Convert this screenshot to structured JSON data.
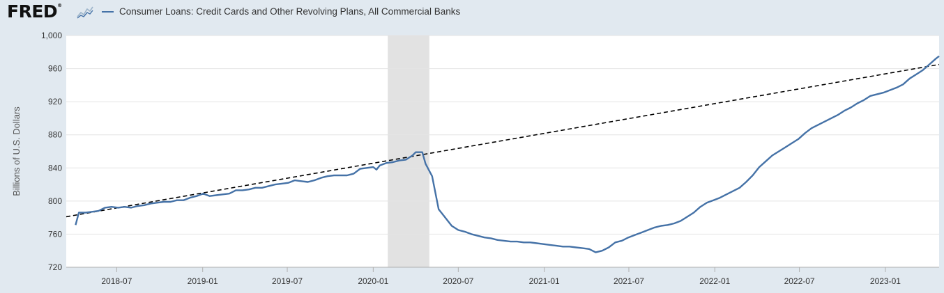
{
  "brand": {
    "logo_text": "FRED",
    "logo_mark": "®",
    "chart_icon": "line-chart-icon"
  },
  "chart_data": {
    "type": "line",
    "title": "",
    "legend": {
      "placement": "top-left"
    },
    "series": [
      {
        "name": "Consumer Loans: Credit Cards and Other Revolving Plans, All Commercial Banks",
        "color": "#4572a7",
        "points": [
          [
            "2018-04-04",
            771
          ],
          [
            "2018-04-11",
            786
          ],
          [
            "2018-04-25",
            786
          ],
          [
            "2018-05-09",
            787
          ],
          [
            "2018-05-23",
            788
          ],
          [
            "2018-06-06",
            792
          ],
          [
            "2018-06-20",
            793
          ],
          [
            "2018-07-04",
            792
          ],
          [
            "2018-07-18",
            793
          ],
          [
            "2018-08-01",
            792
          ],
          [
            "2018-08-15",
            794
          ],
          [
            "2018-08-29",
            795
          ],
          [
            "2018-09-12",
            797
          ],
          [
            "2018-09-26",
            798
          ],
          [
            "2018-10-10",
            799
          ],
          [
            "2018-10-24",
            799
          ],
          [
            "2018-11-07",
            801
          ],
          [
            "2018-11-21",
            801
          ],
          [
            "2018-12-05",
            804
          ],
          [
            "2018-12-19",
            806
          ],
          [
            "2019-01-02",
            809
          ],
          [
            "2019-01-16",
            806
          ],
          [
            "2019-01-30",
            807
          ],
          [
            "2019-02-13",
            808
          ],
          [
            "2019-02-27",
            809
          ],
          [
            "2019-03-13",
            813
          ],
          [
            "2019-03-27",
            813
          ],
          [
            "2019-04-10",
            814
          ],
          [
            "2019-04-24",
            816
          ],
          [
            "2019-05-08",
            816
          ],
          [
            "2019-05-22",
            818
          ],
          [
            "2019-06-05",
            820
          ],
          [
            "2019-06-19",
            821
          ],
          [
            "2019-07-03",
            822
          ],
          [
            "2019-07-17",
            825
          ],
          [
            "2019-07-31",
            824
          ],
          [
            "2019-08-14",
            823
          ],
          [
            "2019-08-28",
            825
          ],
          [
            "2019-09-11",
            828
          ],
          [
            "2019-09-25",
            830
          ],
          [
            "2019-10-09",
            831
          ],
          [
            "2019-10-23",
            831
          ],
          [
            "2019-11-06",
            831
          ],
          [
            "2019-11-20",
            833
          ],
          [
            "2019-12-04",
            839
          ],
          [
            "2019-12-18",
            840
          ],
          [
            "2020-01-01",
            841
          ],
          [
            "2020-01-08",
            838
          ],
          [
            "2020-01-15",
            843
          ],
          [
            "2020-01-29",
            846
          ],
          [
            "2020-02-12",
            847
          ],
          [
            "2020-02-26",
            849
          ],
          [
            "2020-03-11",
            850
          ],
          [
            "2020-03-25",
            855
          ],
          [
            "2020-04-01",
            859
          ],
          [
            "2020-04-15",
            859
          ],
          [
            "2020-04-22",
            845
          ],
          [
            "2020-05-06",
            830
          ],
          [
            "2020-05-20",
            790
          ],
          [
            "2020-06-03",
            780
          ],
          [
            "2020-06-17",
            770
          ],
          [
            "2020-07-01",
            765
          ],
          [
            "2020-07-15",
            763
          ],
          [
            "2020-07-29",
            760
          ],
          [
            "2020-08-12",
            758
          ],
          [
            "2020-08-26",
            756
          ],
          [
            "2020-09-09",
            755
          ],
          [
            "2020-09-23",
            753
          ],
          [
            "2020-10-07",
            752
          ],
          [
            "2020-10-21",
            751
          ],
          [
            "2020-11-04",
            751
          ],
          [
            "2020-11-18",
            750
          ],
          [
            "2020-12-02",
            750
          ],
          [
            "2020-12-16",
            749
          ],
          [
            "2020-12-30",
            748
          ],
          [
            "2021-01-13",
            747
          ],
          [
            "2021-01-27",
            746
          ],
          [
            "2021-02-10",
            745
          ],
          [
            "2021-02-24",
            745
          ],
          [
            "2021-03-10",
            744
          ],
          [
            "2021-03-24",
            743
          ],
          [
            "2021-04-07",
            742
          ],
          [
            "2021-04-21",
            738
          ],
          [
            "2021-05-05",
            740
          ],
          [
            "2021-05-19",
            744
          ],
          [
            "2021-06-02",
            750
          ],
          [
            "2021-06-16",
            752
          ],
          [
            "2021-06-30",
            756
          ],
          [
            "2021-07-14",
            759
          ],
          [
            "2021-07-28",
            762
          ],
          [
            "2021-08-11",
            765
          ],
          [
            "2021-08-25",
            768
          ],
          [
            "2021-09-08",
            770
          ],
          [
            "2021-09-22",
            771
          ],
          [
            "2021-10-06",
            773
          ],
          [
            "2021-10-20",
            776
          ],
          [
            "2021-11-03",
            781
          ],
          [
            "2021-11-17",
            786
          ],
          [
            "2021-12-01",
            793
          ],
          [
            "2021-12-15",
            798
          ],
          [
            "2021-12-29",
            801
          ],
          [
            "2022-01-12",
            804
          ],
          [
            "2022-01-26",
            808
          ],
          [
            "2022-02-09",
            812
          ],
          [
            "2022-02-23",
            816
          ],
          [
            "2022-03-09",
            823
          ],
          [
            "2022-03-23",
            831
          ],
          [
            "2022-04-06",
            841
          ],
          [
            "2022-04-20",
            848
          ],
          [
            "2022-05-04",
            855
          ],
          [
            "2022-05-18",
            860
          ],
          [
            "2022-06-01",
            865
          ],
          [
            "2022-06-15",
            870
          ],
          [
            "2022-06-29",
            875
          ],
          [
            "2022-07-13",
            882
          ],
          [
            "2022-07-27",
            888
          ],
          [
            "2022-08-10",
            892
          ],
          [
            "2022-08-24",
            896
          ],
          [
            "2022-09-07",
            900
          ],
          [
            "2022-09-21",
            904
          ],
          [
            "2022-10-05",
            909
          ],
          [
            "2022-10-19",
            913
          ],
          [
            "2022-11-02",
            918
          ],
          [
            "2022-11-16",
            922
          ],
          [
            "2022-11-30",
            927
          ],
          [
            "2022-12-14",
            929
          ],
          [
            "2022-12-28",
            931
          ],
          [
            "2023-01-11",
            934
          ],
          [
            "2023-01-25",
            937
          ],
          [
            "2023-02-08",
            941
          ],
          [
            "2023-02-22",
            948
          ],
          [
            "2023-03-08",
            953
          ],
          [
            "2023-03-22",
            958
          ],
          [
            "2023-04-05",
            965
          ],
          [
            "2023-04-19",
            972
          ],
          [
            "2023-04-26",
            975
          ]
        ]
      }
    ],
    "trendline": {
      "style": "dashed",
      "color": "#000000",
      "points": [
        [
          "2018-03-15",
          781
        ],
        [
          "2023-04-26",
          965
        ]
      ]
    },
    "recession_band": {
      "color": "#e2e2e2",
      "start": "2020-02-01",
      "end": "2020-04-30"
    },
    "x_axis": {
      "range": [
        "2018-03-15",
        "2023-04-26"
      ],
      "ticks": [
        {
          "date": "2018-07-01",
          "label": "2018-07"
        },
        {
          "date": "2019-01-01",
          "label": "2019-01"
        },
        {
          "date": "2019-07-01",
          "label": "2019-07"
        },
        {
          "date": "2020-01-01",
          "label": "2020-01"
        },
        {
          "date": "2020-07-01",
          "label": "2020-07"
        },
        {
          "date": "2021-01-01",
          "label": "2021-01"
        },
        {
          "date": "2021-07-01",
          "label": "2021-07"
        },
        {
          "date": "2022-01-01",
          "label": "2022-01"
        },
        {
          "date": "2022-07-01",
          "label": "2022-07"
        },
        {
          "date": "2023-01-01",
          "label": "2023-01"
        }
      ]
    },
    "y_axis": {
      "label": "Billions of U.S. Dollars",
      "range": [
        720,
        1000
      ],
      "ticks": [
        {
          "value": 720,
          "label": "720"
        },
        {
          "value": 760,
          "label": "760"
        },
        {
          "value": 800,
          "label": "800"
        },
        {
          "value": 840,
          "label": "840"
        },
        {
          "value": 880,
          "label": "880"
        },
        {
          "value": 920,
          "label": "920"
        },
        {
          "value": 960,
          "label": "960"
        },
        {
          "value": 1000,
          "label": "1,000"
        }
      ]
    },
    "grid": true
  }
}
